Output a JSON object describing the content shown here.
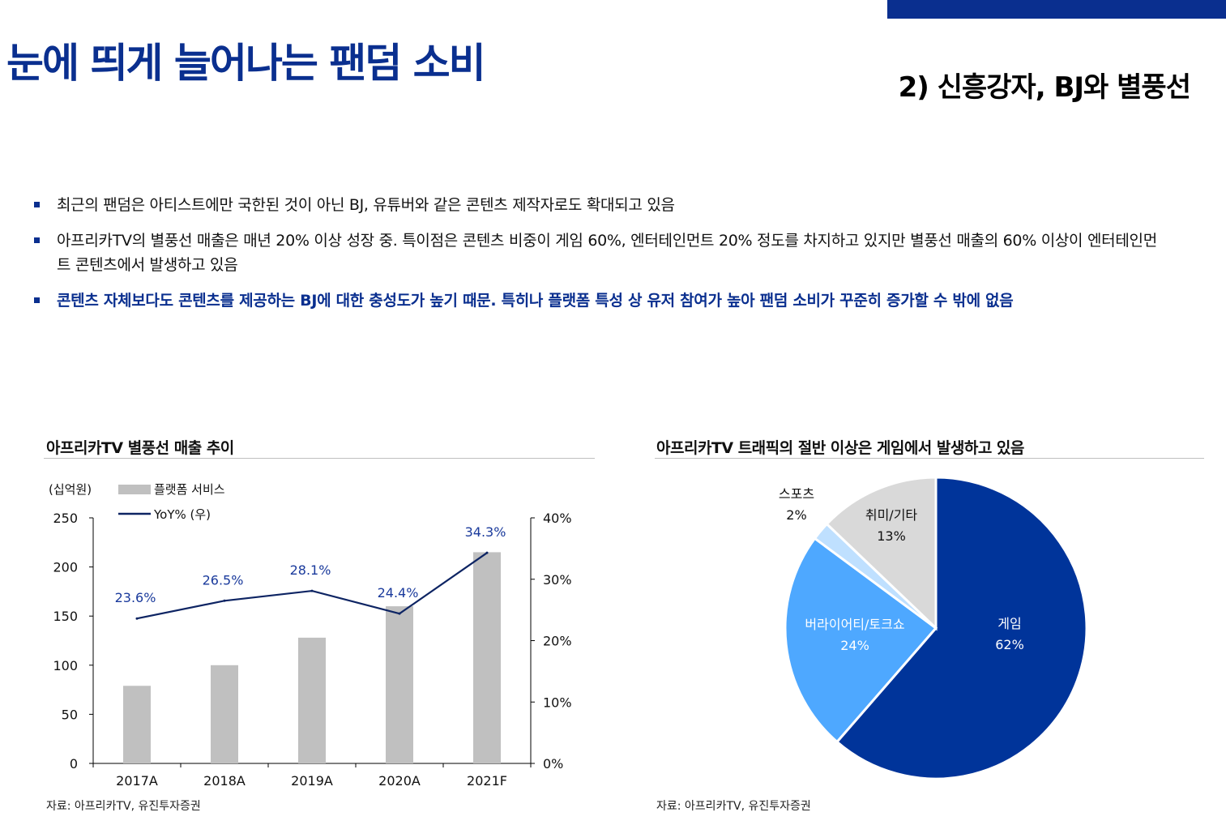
{
  "header": {
    "title": "눈에 띄게 늘어나는 팬덤 소비",
    "subtitle": "2) 신흥강자, BJ와 별풍선"
  },
  "bullets": [
    "최근의 팬덤은 아티스트에만 국한된 것이 아닌 BJ, 유튜버와 같은 콘텐츠 제작자로도 확대되고 있음",
    "아프리카TV의 별풍선 매출은 매년 20% 이상 성장 중. 특이점은 콘텐츠 비중이 게임 60%, 엔터테인먼트 20% 정도를 차지하고 있지만 별풍선 매출의 60% 이상이 엔터테인먼트 콘텐츠에서 발생하고 있음",
    "콘텐츠 자체보다도 콘텐츠를 제공하는 BJ에 대한 충성도가 높기 때문. 특히나 플랫폼 특성 상 유저 참여가 높아 팬덤 소비가 꾸준히 증가할 수 밖에 없음"
  ],
  "left_panel": {
    "title": "아프리카TV 별풍선 매출 추이",
    "source": "자료: 아프리카TV, 유진투자증권"
  },
  "right_panel": {
    "title": "아프리카TV 트래픽의 절반 이상은 게임에서 발생하고 있음",
    "source": "자료: 아프리카TV, 유진투자증권"
  },
  "chart_data": [
    {
      "type": "bar",
      "unit_label": "(십억원)",
      "categories": [
        "2017A",
        "2018A",
        "2019A",
        "2020A",
        "2021F"
      ],
      "series": [
        {
          "name": "플랫폼 서비스",
          "type": "bar",
          "axis": "left",
          "values": [
            79,
            100,
            128,
            160,
            215
          ]
        },
        {
          "name": "YoY% (우)",
          "type": "line",
          "axis": "right",
          "values": [
            23.6,
            26.5,
            28.1,
            24.4,
            34.3
          ]
        }
      ],
      "data_labels": [
        "23.6%",
        "26.5%",
        "28.1%",
        "24.4%",
        "34.3%"
      ],
      "ylim": [
        0,
        250
      ],
      "yticks": [
        "0",
        "50",
        "100",
        "150",
        "200",
        "250"
      ],
      "y2lim": [
        0,
        40
      ],
      "y2ticks": [
        "0%",
        "10%",
        "20%",
        "30%",
        "40%"
      ],
      "legend_position": "top-left",
      "grid": false,
      "colors": {
        "bar": "#c0c0c0",
        "line": "#0d2463",
        "label": "#1a3a9c"
      }
    },
    {
      "type": "pie",
      "slices": [
        {
          "label": "게임",
          "value": 62,
          "pct_label": "62%",
          "color": "#00349a",
          "text_color": "#ffffff"
        },
        {
          "label": "버라이어티/토크쇼",
          "value": 24,
          "pct_label": "24%",
          "color": "#4ea8ff",
          "text_color": "#ffffff"
        },
        {
          "label": "스포츠",
          "value": 2,
          "pct_label": "2%",
          "color": "#bfe0ff",
          "text_color": "#111111"
        },
        {
          "label": "취미/기타",
          "value": 13,
          "pct_label": "13%",
          "color": "#d9d9d9",
          "text_color": "#111111"
        }
      ],
      "start": "top",
      "direction": "clockwise",
      "legend_position": "none"
    }
  ]
}
